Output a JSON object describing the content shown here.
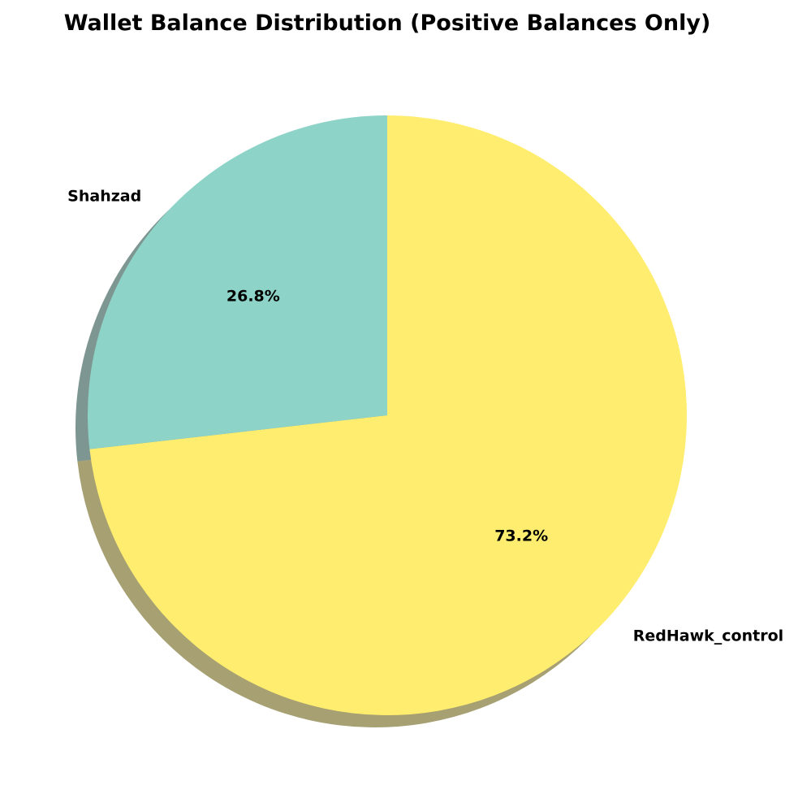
{
  "chart_data": {
    "type": "pie",
    "title": "Wallet Balance Distribution (Positive Balances Only)",
    "start_angle_deg": 90,
    "direction": "clockwise",
    "shadow": true,
    "slices": [
      {
        "label": "RedHawk_control",
        "value": 73.2,
        "pct_label": "73.2%",
        "color": "#ffed6f"
      },
      {
        "label": "Shahzad",
        "value": 26.8,
        "pct_label": "26.8%",
        "color": "#8dd3c7"
      }
    ]
  }
}
